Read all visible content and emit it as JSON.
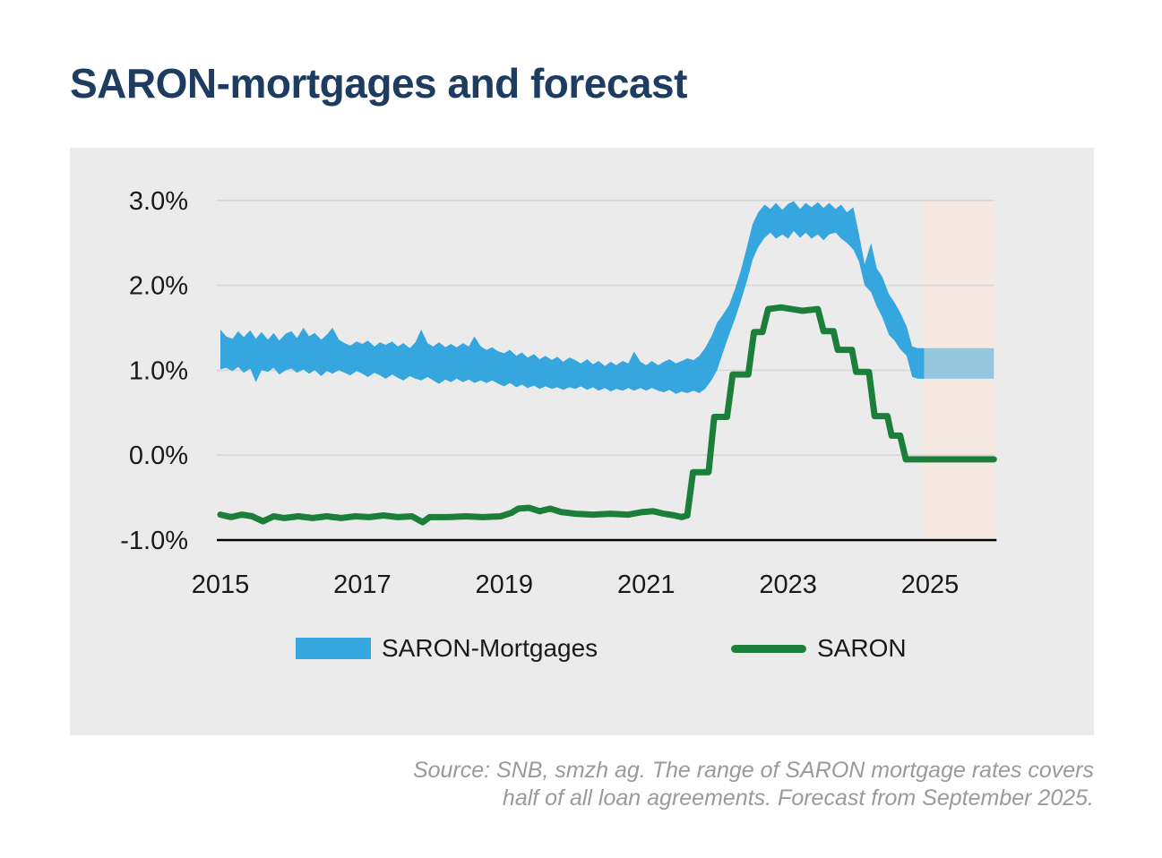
{
  "title": "SARON-mortgages and forecast",
  "source": {
    "line1": "Source: SNB, smzh ag. The range of SARON mortgage rates covers",
    "line2": "half of all loan agreements. Forecast from September 2025."
  },
  "legend": [
    {
      "label": "SARON-Mortgages",
      "swatch": "band",
      "color": "#36a7de"
    },
    {
      "label": "SARON",
      "swatch": "line",
      "color": "#1b7f3a"
    }
  ],
  "colors": {
    "title": "#1d3c60",
    "panel_background": "#ebebeb",
    "mortgage_band": "#36a7de",
    "mortgage_band_forecast": "#94c6de",
    "saron_line": "#1b7f3a",
    "forecast_background": "#f5e9e2",
    "gridline": "#d7d7d7",
    "axis_line": "#000000",
    "tick_label": "#191919",
    "source_text": "#9a9a9a"
  },
  "chart_data": {
    "type": "area",
    "subtype": "band-range-with-line",
    "title": "SARON-mortgages and forecast",
    "x_axis": {
      "min": 2015,
      "max": 2025.9,
      "ticks": [
        2015,
        2017,
        2019,
        2021,
        2023,
        2025
      ]
    },
    "y_axis": {
      "min": -1.0,
      "max": 3.0,
      "tick_values": [
        3.0,
        2.0,
        1.0,
        0.0,
        -1.0
      ],
      "tick_labels": [
        "3.0%",
        "2.0%",
        "1.0%",
        "0.0%",
        "-1.0%"
      ],
      "unit": "%",
      "grid_values": [
        3.0,
        2.0,
        1.0,
        0.0
      ]
    },
    "forecast_region": {
      "x_start": 2024.9,
      "x_end": 2025.9,
      "note": "Forecast from September 2025"
    },
    "series": [
      {
        "name": "SARON-Mortgages",
        "type": "band",
        "color": "#36a7de",
        "points_year_upper_lower": [
          [
            2015.0,
            1.48,
            1.01
          ],
          [
            2015.08,
            1.4,
            1.03
          ],
          [
            2015.17,
            1.37,
            0.99
          ],
          [
            2015.25,
            1.46,
            1.04
          ],
          [
            2015.33,
            1.39,
            0.97
          ],
          [
            2015.42,
            1.47,
            1.02
          ],
          [
            2015.5,
            1.37,
            0.86
          ],
          [
            2015.58,
            1.45,
            1.0
          ],
          [
            2015.67,
            1.36,
            0.98
          ],
          [
            2015.75,
            1.44,
            1.03
          ],
          [
            2015.83,
            1.35,
            0.95
          ],
          [
            2015.92,
            1.43,
            1.0
          ],
          [
            2016.0,
            1.46,
            1.02
          ],
          [
            2016.08,
            1.38,
            0.97
          ],
          [
            2016.17,
            1.5,
            1.01
          ],
          [
            2016.25,
            1.4,
            0.96
          ],
          [
            2016.33,
            1.44,
            1.0
          ],
          [
            2016.42,
            1.36,
            0.93
          ],
          [
            2016.5,
            1.42,
            0.99
          ],
          [
            2016.58,
            1.5,
            0.96
          ],
          [
            2016.67,
            1.36,
            1.0
          ],
          [
            2016.75,
            1.32,
            0.97
          ],
          [
            2016.83,
            1.29,
            0.94
          ],
          [
            2016.92,
            1.34,
            0.99
          ],
          [
            2017.0,
            1.31,
            0.96
          ],
          [
            2017.08,
            1.35,
            0.92
          ],
          [
            2017.17,
            1.28,
            0.97
          ],
          [
            2017.25,
            1.33,
            0.94
          ],
          [
            2017.33,
            1.3,
            0.9
          ],
          [
            2017.42,
            1.34,
            0.95
          ],
          [
            2017.5,
            1.28,
            0.91
          ],
          [
            2017.58,
            1.32,
            0.88
          ],
          [
            2017.67,
            1.26,
            0.93
          ],
          [
            2017.75,
            1.33,
            0.9
          ],
          [
            2017.83,
            1.48,
            0.88
          ],
          [
            2017.92,
            1.32,
            0.92
          ],
          [
            2018.0,
            1.28,
            0.88
          ],
          [
            2018.08,
            1.33,
            0.84
          ],
          [
            2018.17,
            1.27,
            0.89
          ],
          [
            2018.25,
            1.31,
            0.86
          ],
          [
            2018.33,
            1.27,
            0.9
          ],
          [
            2018.42,
            1.32,
            0.86
          ],
          [
            2018.5,
            1.28,
            0.89
          ],
          [
            2018.58,
            1.4,
            0.85
          ],
          [
            2018.67,
            1.28,
            0.88
          ],
          [
            2018.75,
            1.24,
            0.85
          ],
          [
            2018.83,
            1.27,
            0.88
          ],
          [
            2018.92,
            1.22,
            0.84
          ],
          [
            2019.0,
            1.2,
            0.81
          ],
          [
            2019.08,
            1.24,
            0.85
          ],
          [
            2019.17,
            1.17,
            0.8
          ],
          [
            2019.25,
            1.21,
            0.83
          ],
          [
            2019.33,
            1.15,
            0.79
          ],
          [
            2019.42,
            1.19,
            0.82
          ],
          [
            2019.5,
            1.13,
            0.78
          ],
          [
            2019.58,
            1.17,
            0.81
          ],
          [
            2019.67,
            1.12,
            0.78
          ],
          [
            2019.75,
            1.16,
            0.8
          ],
          [
            2019.83,
            1.1,
            0.77
          ],
          [
            2019.92,
            1.15,
            0.8
          ],
          [
            2020.0,
            1.12,
            0.78
          ],
          [
            2020.08,
            1.08,
            0.81
          ],
          [
            2020.17,
            1.13,
            0.77
          ],
          [
            2020.25,
            1.07,
            0.8
          ],
          [
            2020.33,
            1.11,
            0.76
          ],
          [
            2020.42,
            1.05,
            0.79
          ],
          [
            2020.5,
            1.1,
            0.75
          ],
          [
            2020.58,
            1.06,
            0.78
          ],
          [
            2020.67,
            1.11,
            0.76
          ],
          [
            2020.75,
            1.08,
            0.79
          ],
          [
            2020.83,
            1.22,
            0.76
          ],
          [
            2020.92,
            1.1,
            0.79
          ],
          [
            2021.0,
            1.06,
            0.76
          ],
          [
            2021.08,
            1.11,
            0.79
          ],
          [
            2021.17,
            1.06,
            0.76
          ],
          [
            2021.25,
            1.1,
            0.74
          ],
          [
            2021.33,
            1.13,
            0.77
          ],
          [
            2021.42,
            1.08,
            0.72
          ],
          [
            2021.5,
            1.11,
            0.75
          ],
          [
            2021.58,
            1.14,
            0.73
          ],
          [
            2021.67,
            1.12,
            0.76
          ],
          [
            2021.75,
            1.17,
            0.73
          ],
          [
            2021.83,
            1.26,
            0.78
          ],
          [
            2021.92,
            1.4,
            0.88
          ],
          [
            2022.0,
            1.56,
            1.0
          ],
          [
            2022.08,
            1.65,
            1.2
          ],
          [
            2022.17,
            1.77,
            1.42
          ],
          [
            2022.25,
            1.95,
            1.6
          ],
          [
            2022.33,
            2.16,
            1.8
          ],
          [
            2022.42,
            2.45,
            2.05
          ],
          [
            2022.5,
            2.72,
            2.3
          ],
          [
            2022.58,
            2.86,
            2.45
          ],
          [
            2022.67,
            2.95,
            2.56
          ],
          [
            2022.75,
            2.9,
            2.62
          ],
          [
            2022.83,
            2.97,
            2.55
          ],
          [
            2022.92,
            2.89,
            2.6
          ],
          [
            2023.0,
            2.96,
            2.55
          ],
          [
            2023.08,
            2.99,
            2.64
          ],
          [
            2023.17,
            2.9,
            2.56
          ],
          [
            2023.25,
            2.97,
            2.62
          ],
          [
            2023.33,
            2.92,
            2.55
          ],
          [
            2023.42,
            2.98,
            2.6
          ],
          [
            2023.5,
            2.91,
            2.53
          ],
          [
            2023.58,
            2.97,
            2.6
          ],
          [
            2023.67,
            2.9,
            2.62
          ],
          [
            2023.75,
            2.95,
            2.55
          ],
          [
            2023.83,
            2.86,
            2.5
          ],
          [
            2023.92,
            2.92,
            2.42
          ],
          [
            2024.0,
            2.6,
            2.28
          ],
          [
            2024.08,
            2.25,
            2.0
          ],
          [
            2024.17,
            2.5,
            1.92
          ],
          [
            2024.25,
            2.2,
            1.75
          ],
          [
            2024.33,
            2.1,
            1.62
          ],
          [
            2024.42,
            1.9,
            1.42
          ],
          [
            2024.5,
            1.8,
            1.35
          ],
          [
            2024.58,
            1.68,
            1.25
          ],
          [
            2024.67,
            1.52,
            1.17
          ],
          [
            2024.75,
            1.28,
            0.92
          ],
          [
            2024.83,
            1.26,
            0.9
          ],
          [
            2024.92,
            1.26,
            0.9
          ]
        ]
      },
      {
        "name": "SARON-Mortgages forecast",
        "type": "band",
        "color": "#94c6de",
        "points_year_upper_lower": [
          [
            2024.92,
            1.26,
            0.9
          ],
          [
            2025.9,
            1.26,
            0.9
          ]
        ]
      },
      {
        "name": "SARON",
        "type": "line",
        "color": "#1b7f3a",
        "points_year_value": [
          [
            2015.0,
            -0.7
          ],
          [
            2015.15,
            -0.73
          ],
          [
            2015.3,
            -0.7
          ],
          [
            2015.45,
            -0.72
          ],
          [
            2015.6,
            -0.78
          ],
          [
            2015.75,
            -0.72
          ],
          [
            2015.9,
            -0.74
          ],
          [
            2016.1,
            -0.72
          ],
          [
            2016.3,
            -0.74
          ],
          [
            2016.5,
            -0.72
          ],
          [
            2016.7,
            -0.74
          ],
          [
            2016.9,
            -0.72
          ],
          [
            2017.1,
            -0.73
          ],
          [
            2017.3,
            -0.71
          ],
          [
            2017.5,
            -0.73
          ],
          [
            2017.7,
            -0.72
          ],
          [
            2017.85,
            -0.79
          ],
          [
            2017.95,
            -0.73
          ],
          [
            2018.2,
            -0.73
          ],
          [
            2018.45,
            -0.72
          ],
          [
            2018.7,
            -0.73
          ],
          [
            2018.95,
            -0.72
          ],
          [
            2019.1,
            -0.68
          ],
          [
            2019.2,
            -0.63
          ],
          [
            2019.35,
            -0.62
          ],
          [
            2019.5,
            -0.66
          ],
          [
            2019.65,
            -0.63
          ],
          [
            2019.8,
            -0.67
          ],
          [
            2020.0,
            -0.69
          ],
          [
            2020.25,
            -0.7
          ],
          [
            2020.5,
            -0.69
          ],
          [
            2020.75,
            -0.7
          ],
          [
            2020.95,
            -0.67
          ],
          [
            2021.1,
            -0.66
          ],
          [
            2021.25,
            -0.69
          ],
          [
            2021.4,
            -0.71
          ],
          [
            2021.5,
            -0.73
          ],
          [
            2021.58,
            -0.71
          ],
          [
            2021.66,
            -0.2
          ],
          [
            2021.88,
            -0.2
          ],
          [
            2021.96,
            0.45
          ],
          [
            2022.14,
            0.45
          ],
          [
            2022.22,
            0.95
          ],
          [
            2022.44,
            0.95
          ],
          [
            2022.52,
            1.45
          ],
          [
            2022.64,
            1.45
          ],
          [
            2022.72,
            1.72
          ],
          [
            2022.9,
            1.74
          ],
          [
            2023.2,
            1.7
          ],
          [
            2023.42,
            1.72
          ],
          [
            2023.5,
            1.46
          ],
          [
            2023.64,
            1.46
          ],
          [
            2023.7,
            1.24
          ],
          [
            2023.9,
            1.24
          ],
          [
            2023.96,
            0.98
          ],
          [
            2024.14,
            0.98
          ],
          [
            2024.22,
            0.46
          ],
          [
            2024.4,
            0.46
          ],
          [
            2024.46,
            0.23
          ],
          [
            2024.58,
            0.23
          ],
          [
            2024.66,
            -0.05
          ],
          [
            2025.0,
            -0.05
          ],
          [
            2025.9,
            -0.05
          ]
        ]
      }
    ]
  }
}
